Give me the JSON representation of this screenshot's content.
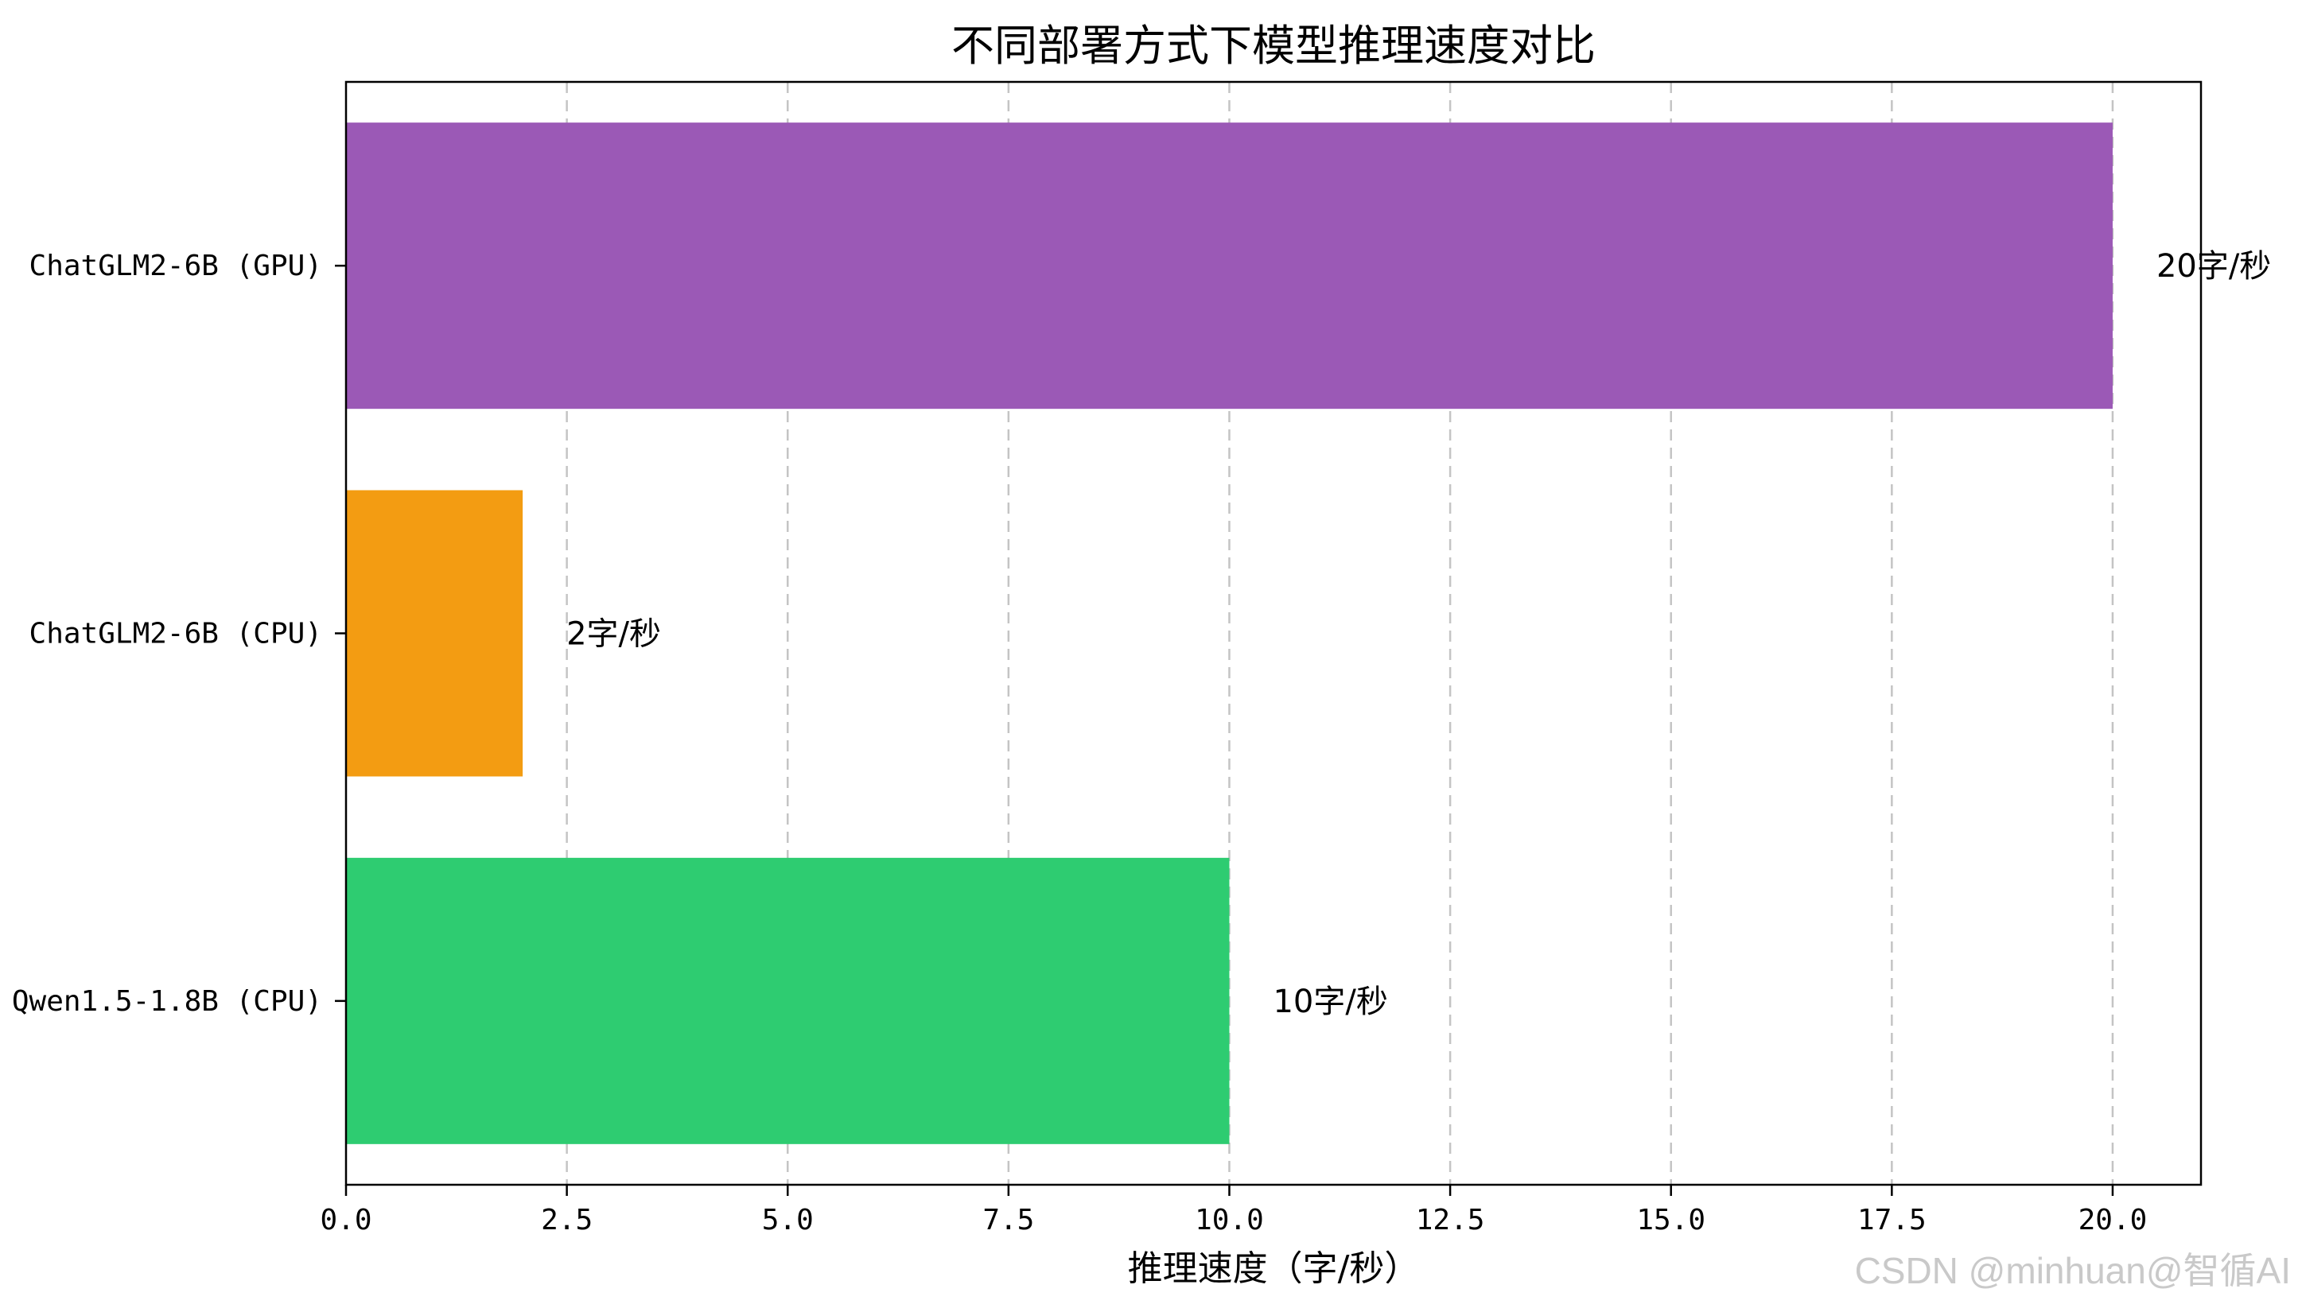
{
  "chart_data": {
    "type": "bar",
    "orientation": "horizontal",
    "title": "不同部署方式下模型推理速度对比",
    "xlabel": "推理速度（字/秒）",
    "ylabel": "",
    "xlim": [
      0,
      21
    ],
    "xticks": [
      "0.0",
      "2.5",
      "5.0",
      "7.5",
      "10.0",
      "12.5",
      "15.0",
      "17.5",
      "20.0"
    ],
    "categories": [
      "ChatGLM2-6B (GPU)",
      "ChatGLM2-6B (CPU)",
      "Qwen1.5-1.8B (CPU)"
    ],
    "values": [
      20,
      2,
      10
    ],
    "value_labels": [
      "20字/秒",
      "2字/秒",
      "10字/秒"
    ],
    "colors": [
      "#9b59b6",
      "#f39c12",
      "#2ecc71"
    ],
    "grid": "x-dashed",
    "legend": "none"
  },
  "watermark": "CSDN @minhuan@智循AI"
}
